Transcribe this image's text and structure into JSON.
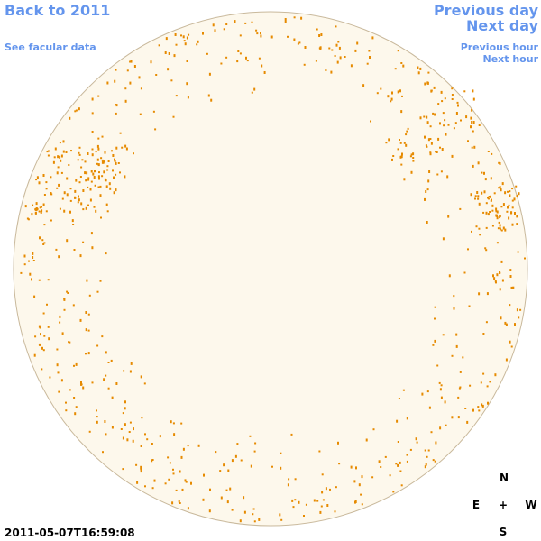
{
  "nav": {
    "back": "Back to 2011",
    "facular": "See facular data",
    "previous_day": "Previous day",
    "next_day": "Next day",
    "previous_hour": "Previous hour",
    "next_hour": "Next hour"
  },
  "timestamp": "2011-05-07T16:59:08",
  "compass": {
    "north": "N",
    "east": "E",
    "center": "+",
    "west": "W",
    "south": "S"
  }
}
